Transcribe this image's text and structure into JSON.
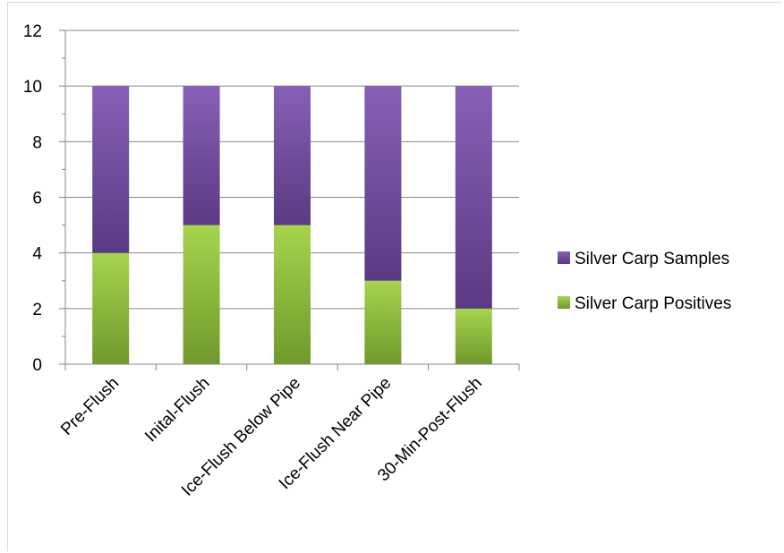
{
  "chart_data": {
    "type": "bar",
    "stacked": true,
    "categories": [
      "Pre-Flush",
      "Inital-Flush",
      "Ice-Flush Below Pipe",
      "Ice-Flush Near Pipe",
      "30-Min-Post-Flush"
    ],
    "series": [
      {
        "name": "Silver Carp Positives",
        "values": [
          4,
          5,
          5,
          3,
          2
        ],
        "color": "#92c83e"
      },
      {
        "name": "Silver Carp Samples",
        "values": [
          6,
          5,
          5,
          7,
          8
        ],
        "color": "#7b54a8"
      }
    ],
    "ylim": [
      0,
      12
    ],
    "yticks": [
      0,
      2,
      4,
      6,
      8,
      10,
      12
    ],
    "grid": true,
    "legend_position": "right",
    "legend_order": [
      "Silver Carp Samples",
      "Silver Carp Positives"
    ]
  }
}
